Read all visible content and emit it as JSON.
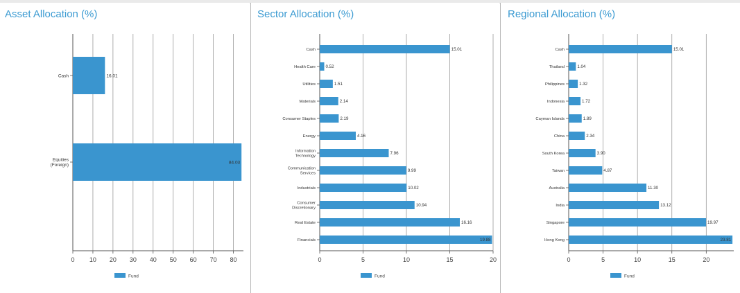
{
  "colors": {
    "bar": "#3a95cf",
    "title": "#3c9bd2",
    "grid": "#9a9a9a",
    "axis": "#555555"
  },
  "chart_data": [
    {
      "type": "bar",
      "orientation": "horizontal",
      "title": "Asset Allocation (%)",
      "categories": [
        [
          "Cash"
        ],
        [
          "Equities",
          "(Foreign)"
        ]
      ],
      "series": [
        {
          "name": "Fund",
          "values": [
            16.01,
            84.03
          ]
        }
      ],
      "value_labels": [
        "16.01",
        "84.03"
      ],
      "xlim": [
        0,
        85
      ],
      "xticks": [
        0,
        10,
        20,
        30,
        40,
        50,
        60,
        70,
        80
      ],
      "grid": true,
      "legend_position": "bottom"
    },
    {
      "type": "bar",
      "orientation": "horizontal",
      "title": "Sector Allocation (%)",
      "categories": [
        [
          "Cash"
        ],
        [
          "Health Care"
        ],
        [
          "Utilities"
        ],
        [
          "Materials"
        ],
        [
          "Consumer Staples"
        ],
        [
          "Energy"
        ],
        [
          "Information",
          "Technology"
        ],
        [
          "Communication",
          "Services"
        ],
        [
          "Industrials"
        ],
        [
          "Consumer",
          "Discretionary"
        ],
        [
          "Real Estate"
        ],
        [
          "Financials"
        ]
      ],
      "series": [
        {
          "name": "Fund",
          "values": [
            15.01,
            0.52,
            1.51,
            2.14,
            2.19,
            4.16,
            7.96,
            9.99,
            10.02,
            10.94,
            16.16,
            19.88
          ]
        }
      ],
      "value_labels": [
        "15.01",
        "0.52",
        "1.51",
        "2.14",
        "2.19",
        "4.16",
        "7.96",
        "9.99",
        "10.02",
        "10.94",
        "16.16",
        "19.88"
      ],
      "xlim": [
        0,
        20
      ],
      "xticks": [
        0,
        5,
        10,
        15,
        20
      ],
      "grid": true,
      "legend_position": "bottom"
    },
    {
      "type": "bar",
      "orientation": "horizontal",
      "title": "Regional Allocation (%)",
      "categories": [
        [
          "Cash"
        ],
        [
          "Thailand"
        ],
        [
          "Philippines"
        ],
        [
          "Indonesia"
        ],
        [
          "Cayman Islands"
        ],
        [
          "China"
        ],
        [
          "South Korea"
        ],
        [
          "Taiwan"
        ],
        [
          "Australia"
        ],
        [
          "India"
        ],
        [
          "Singapore"
        ],
        [
          "Hong Kong"
        ]
      ],
      "series": [
        {
          "name": "Fund",
          "values": [
            15.01,
            1.04,
            1.32,
            1.72,
            1.89,
            2.34,
            3.9,
            4.87,
            11.3,
            13.12,
            19.97,
            23.81
          ]
        }
      ],
      "value_labels": [
        "15.01",
        "1.04",
        "1.32",
        "1.72",
        "1.89",
        "2.34",
        "3.90",
        "4.87",
        "11.30",
        "13.12",
        "19.97",
        "23.81"
      ],
      "xlim": [
        0,
        24
      ],
      "xticks": [
        0,
        5,
        10,
        15,
        20
      ],
      "grid": true,
      "legend_position": "bottom"
    }
  ]
}
